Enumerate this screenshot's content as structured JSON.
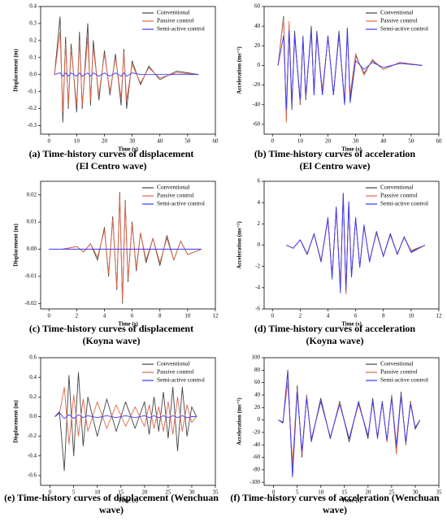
{
  "chart_data": [
    {
      "type": "line",
      "caption": [
        "(a) Time-history curves of displacement",
        "(El Centro wave)"
      ],
      "xlabel": "Time (s)",
      "ylabel": "Displacement (m)",
      "legend": "upper right",
      "xlim": [
        -3,
        60
      ],
      "xticks": [
        0,
        10,
        20,
        30,
        40,
        50,
        60
      ],
      "ylim": [
        -0.35,
        0.4
      ],
      "yticks": [
        -0.3,
        -0.2,
        -0.1,
        {
          "value": 0,
          "label": "0.0"
        },
        0.1,
        0.2,
        0.3,
        0.4
      ],
      "x": [
        2,
        4,
        5,
        6,
        7,
        8,
        10,
        11,
        12,
        14,
        15,
        16,
        18,
        20,
        22,
        24,
        26,
        27,
        28,
        30,
        33,
        36,
        40,
        46,
        54
      ],
      "series": [
        {
          "name": "Conventional",
          "color": "#444444",
          "values": [
            0,
            0.34,
            -0.28,
            0.22,
            -0.2,
            0.18,
            -0.22,
            0.25,
            -0.2,
            0.3,
            -0.18,
            0.2,
            -0.15,
            0.14,
            -0.12,
            0.12,
            -0.18,
            0.15,
            -0.2,
            0.08,
            -0.06,
            0.05,
            -0.03,
            0.02,
            0
          ]
        },
        {
          "name": "Passive control",
          "color": "#e0684a",
          "values": [
            0,
            0.25,
            -0.22,
            0.18,
            -0.18,
            0.15,
            -0.18,
            0.2,
            -0.18,
            0.22,
            -0.15,
            0.16,
            -0.12,
            0.12,
            -0.1,
            0.1,
            -0.14,
            0.13,
            -0.15,
            0.06,
            -0.05,
            0.04,
            -0.02,
            0.01,
            0
          ]
        },
        {
          "name": "Semi-active control",
          "color": "#3a3aff",
          "values": [
            0,
            0.01,
            -0.01,
            0.01,
            -0.01,
            0.01,
            -0.01,
            0.01,
            -0.01,
            0.01,
            -0.01,
            0.01,
            -0.01,
            0.01,
            -0.01,
            0.01,
            -0.01,
            0.01,
            -0.01,
            0.01,
            0,
            0,
            0,
            0,
            0
          ]
        }
      ]
    },
    {
      "type": "line",
      "caption": [
        "(b) Time-history curves of acceleration",
        "(El Centro wave)"
      ],
      "xlabel": "Time (s)",
      "ylabel": "Acceleration (ms⁻²)",
      "legend": "upper right",
      "xlim": [
        -3,
        60
      ],
      "xticks": [
        0,
        10,
        20,
        30,
        40,
        50,
        60
      ],
      "ylim": [
        -70,
        60
      ],
      "yticks": [
        -60,
        -40,
        -20,
        0,
        20,
        40,
        60
      ],
      "x": [
        2,
        4,
        5,
        6,
        7,
        8,
        10,
        11,
        12,
        14,
        15,
        16,
        18,
        20,
        22,
        24,
        26,
        27,
        28,
        30,
        33,
        36,
        40,
        46,
        54
      ],
      "series": [
        {
          "name": "Conventional",
          "color": "#444444",
          "values": [
            0,
            50,
            -55,
            40,
            -45,
            35,
            -40,
            30,
            -35,
            40,
            -30,
            35,
            -30,
            30,
            -30,
            35,
            -40,
            38,
            -35,
            10,
            -8,
            5,
            -4,
            3,
            0
          ]
        },
        {
          "name": "Passive control",
          "color": "#e0684a",
          "values": [
            0,
            48,
            -58,
            45,
            -40,
            30,
            -38,
            28,
            -32,
            35,
            -28,
            30,
            -25,
            28,
            -28,
            30,
            -35,
            35,
            -30,
            12,
            -10,
            6,
            -4,
            3,
            0
          ]
        },
        {
          "name": "Semi-active control",
          "color": "#3a3aff",
          "values": [
            0,
            30,
            -45,
            35,
            -40,
            30,
            -35,
            28,
            -30,
            35,
            -30,
            32,
            -30,
            30,
            -30,
            32,
            -40,
            38,
            -38,
            5,
            -4,
            3,
            -2,
            2,
            0
          ]
        }
      ]
    },
    {
      "type": "line",
      "caption": [
        "(c) Time-history curves of displacement",
        "(Koyna wave)"
      ],
      "xlabel": "Time (s)",
      "ylabel": "Displacement (m)",
      "legend": "upper right",
      "xlim": [
        -0.6,
        12
      ],
      "xticks": [
        0,
        2,
        4,
        6,
        8,
        10,
        12
      ],
      "ylim": [
        -0.022,
        0.025
      ],
      "yticks": [
        -0.02,
        -0.01,
        {
          "value": 0,
          "label": "0.00"
        },
        0.01,
        0.02
      ],
      "x": [
        0,
        1,
        2,
        2.5,
        3,
        3.5,
        4,
        4.3,
        4.6,
        4.9,
        5.1,
        5.3,
        5.5,
        5.7,
        6,
        6.3,
        6.6,
        7,
        7.5,
        8,
        8.5,
        9,
        9.5,
        10,
        11
      ],
      "series": [
        {
          "name": "Conventional",
          "color": "#444444",
          "values": [
            0,
            0,
            0.001,
            -0.001,
            0.002,
            -0.004,
            0.008,
            -0.01,
            0.012,
            -0.015,
            0.021,
            -0.02,
            0.018,
            -0.012,
            0.01,
            -0.008,
            0.006,
            -0.005,
            0.004,
            -0.006,
            0.005,
            -0.004,
            0.003,
            -0.002,
            0
          ]
        },
        {
          "name": "Passive control",
          "color": "#e0684a",
          "values": [
            0,
            0,
            0.001,
            -0.001,
            0.002,
            -0.003,
            0.007,
            -0.009,
            0.011,
            -0.014,
            0.02,
            -0.019,
            0.017,
            -0.011,
            0.009,
            -0.007,
            0.006,
            -0.004,
            0.004,
            -0.005,
            0.004,
            -0.004,
            0.003,
            -0.002,
            0
          ]
        },
        {
          "name": "Semi-active control",
          "color": "#3a3aff",
          "values": [
            0,
            0,
            0,
            0,
            0,
            0,
            0,
            0,
            0,
            0,
            0,
            0,
            0,
            0,
            0,
            0,
            0,
            0,
            0,
            0,
            0,
            0,
            0,
            0,
            0
          ]
        }
      ]
    },
    {
      "type": "line",
      "caption": [
        "(d) Time-history curves of acceleration",
        "(Koyna wave)"
      ],
      "xlabel": "Time (s)",
      "ylabel": "Acceleration (ms⁻²)",
      "legend": "upper right",
      "xlim": [
        -0.6,
        12
      ],
      "xticks": [
        0,
        2,
        4,
        6,
        8,
        10,
        12
      ],
      "ylim": [
        -6,
        6
      ],
      "yticks": [
        -6,
        -4,
        -2,
        0,
        2,
        4,
        6
      ],
      "x": [
        1,
        1.5,
        2,
        2.5,
        3,
        3.5,
        4,
        4.3,
        4.6,
        4.9,
        5.1,
        5.3,
        5.5,
        5.7,
        6,
        6.3,
        6.6,
        7,
        7.5,
        8,
        8.5,
        9,
        9.5,
        10,
        11
      ],
      "series": [
        {
          "name": "Conventional",
          "color": "#444444",
          "values": [
            0,
            -0.3,
            0.5,
            -0.8,
            1,
            -1.5,
            2.5,
            -3,
            3.5,
            -4,
            4.8,
            -4.5,
            4,
            -3,
            2.5,
            -2,
            1.8,
            -1.5,
            1.2,
            -1,
            1,
            -0.8,
            0.7,
            -0.6,
            0
          ]
        },
        {
          "name": "Passive control",
          "color": "#e0684a",
          "values": [
            0,
            -0.3,
            0.5,
            -0.8,
            1,
            -1.4,
            2.3,
            -2.8,
            3.3,
            -3.8,
            4.6,
            -4.6,
            3.8,
            -2.8,
            2.4,
            -2,
            1.7,
            -1.4,
            1.1,
            -1,
            0.9,
            -0.8,
            0.7,
            -0.5,
            0
          ]
        },
        {
          "name": "Semi-active control",
          "color": "#3a3aff",
          "values": [
            0,
            -0.3,
            0.5,
            -0.9,
            1.1,
            -1.6,
            2.6,
            -3.2,
            3.6,
            -4.5,
            4.9,
            -4.2,
            4.1,
            -3,
            2.6,
            -2.1,
            1.9,
            -1.6,
            1.3,
            -1.1,
            1.1,
            -0.9,
            0.8,
            -0.7,
            0
          ]
        }
      ]
    },
    {
      "type": "line",
      "caption": [
        "(e) Time-history curves of displacement (Wenchuan",
        "wave)"
      ],
      "xlabel": "Time (s)",
      "ylabel": "Displacement (m)",
      "legend": "upper right",
      "xlim": [
        -2,
        35
      ],
      "xticks": [
        0,
        5,
        10,
        15,
        20,
        25,
        30,
        35
      ],
      "ylim": [
        -0.7,
        0.6
      ],
      "yticks": [
        -0.6,
        -0.4,
        -0.2,
        {
          "value": 0,
          "label": "0.0"
        },
        0.2,
        0.4,
        0.6
      ],
      "x": [
        1,
        2,
        3,
        4,
        5,
        6,
        7,
        8,
        10,
        12,
        14,
        16,
        18,
        20,
        21,
        22,
        23,
        24,
        25,
        26,
        27,
        28,
        29,
        30,
        31
      ],
      "series": [
        {
          "name": "Conventional",
          "color": "#444444",
          "values": [
            0,
            0.05,
            -0.55,
            0.42,
            -0.4,
            0.45,
            -0.3,
            0.2,
            -0.2,
            0.18,
            -0.15,
            0.15,
            -0.12,
            0.15,
            -0.18,
            0.2,
            -0.15,
            0.25,
            -0.22,
            0.3,
            -0.35,
            0.3,
            -0.2,
            0.1,
            0
          ]
        },
        {
          "name": "Passive control",
          "color": "#e0684a",
          "values": [
            0,
            0.03,
            0.3,
            -0.28,
            0.22,
            -0.2,
            0.18,
            -0.15,
            0.15,
            -0.12,
            0.12,
            -0.1,
            0.1,
            -0.1,
            0.12,
            -0.12,
            0.1,
            -0.15,
            0.15,
            -0.18,
            0.2,
            -0.15,
            0.12,
            -0.06,
            0
          ]
        },
        {
          "name": "Semi-active control",
          "color": "#3a3aff",
          "values": [
            0,
            0.04,
            -0.02,
            0.02,
            -0.02,
            0.02,
            -0.01,
            0.01,
            -0.01,
            0.01,
            -0.01,
            0.01,
            -0.01,
            0.01,
            -0.01,
            0.01,
            -0.01,
            0.01,
            -0.01,
            0.01,
            -0.01,
            0.01,
            -0.01,
            0,
            0
          ]
        }
      ]
    },
    {
      "type": "line",
      "caption": [
        "(f) Time-history curves of acceleration (Wenchuan",
        "wave)"
      ],
      "xlabel": "Time (s)",
      "ylabel": "Acceleration (ms⁻²)",
      "legend": "upper right",
      "xlim": [
        -2,
        35
      ],
      "xticks": [
        0,
        5,
        10,
        15,
        20,
        25,
        30,
        35
      ],
      "ylim": [
        -105,
        100
      ],
      "yticks": [
        -100,
        -80,
        -60,
        -40,
        -20,
        0,
        20,
        40,
        60,
        80,
        100
      ],
      "x": [
        1,
        2,
        3,
        4,
        5,
        6,
        7,
        8,
        10,
        12,
        14,
        16,
        18,
        20,
        21,
        22,
        23,
        24,
        25,
        26,
        27,
        28,
        29,
        30,
        31
      ],
      "series": [
        {
          "name": "Conventional",
          "color": "#444444",
          "values": [
            0,
            -5,
            80,
            -90,
            55,
            -60,
            40,
            -35,
            35,
            -30,
            30,
            -35,
            30,
            -30,
            35,
            -30,
            30,
            -35,
            40,
            -45,
            45,
            -40,
            30,
            -15,
            0
          ]
        },
        {
          "name": "Passive control",
          "color": "#e0684a",
          "values": [
            0,
            -3,
            60,
            -70,
            50,
            -55,
            38,
            -30,
            30,
            -28,
            28,
            -30,
            25,
            -25,
            30,
            -28,
            28,
            -35,
            38,
            -55,
            40,
            -38,
            28,
            -12,
            0
          ]
        },
        {
          "name": "Semi-active control",
          "color": "#3a3aff",
          "values": [
            0,
            -4,
            78,
            -92,
            45,
            -50,
            35,
            -32,
            30,
            -28,
            25,
            -30,
            28,
            -26,
            30,
            -28,
            28,
            -32,
            35,
            -40,
            38,
            -35,
            25,
            -12,
            0
          ]
        }
      ]
    }
  ]
}
